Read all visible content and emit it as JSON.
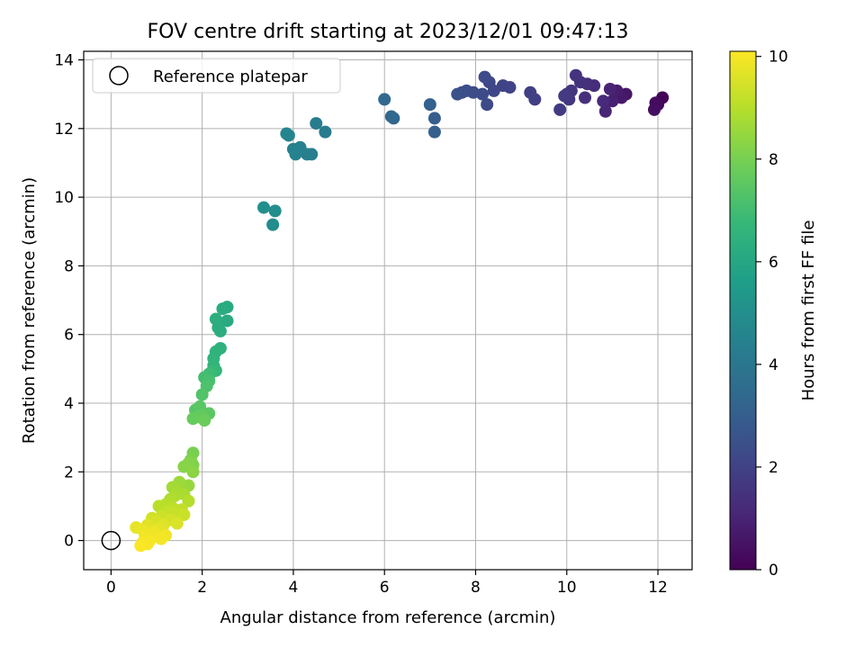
{
  "chart_data": {
    "type": "scatter",
    "title": "FOV centre drift starting at 2023/12/01 09:47:13",
    "xlabel": "Angular distance from reference (arcmin)",
    "ylabel": "Rotation from reference (arcmin)",
    "xlim": [
      -0.6,
      12.75
    ],
    "ylim": [
      -0.85,
      14.25
    ],
    "xticks": [
      0,
      2,
      4,
      6,
      8,
      10,
      12
    ],
    "yticks": [
      0,
      2,
      4,
      6,
      8,
      10,
      12,
      14
    ],
    "grid": true,
    "legend": {
      "placement": "top-left",
      "entries": [
        "Reference platepar"
      ]
    },
    "reference_point": {
      "x": 0,
      "y": 0
    },
    "colorbar": {
      "label": "Hours from first FF file",
      "range": [
        0,
        10.1
      ],
      "ticks": [
        0,
        2,
        4,
        6,
        8,
        10
      ],
      "colormap": "viridis"
    },
    "points": [
      {
        "x": 12.1,
        "y": 12.9,
        "c": 0.1
      },
      {
        "x": 12.0,
        "y": 12.7,
        "c": 0.2
      },
      {
        "x": 11.95,
        "y": 12.75,
        "c": 0.3
      },
      {
        "x": 11.92,
        "y": 12.55,
        "c": 0.4
      },
      {
        "x": 11.3,
        "y": 13.0,
        "c": 0.6
      },
      {
        "x": 11.2,
        "y": 12.9,
        "c": 0.7
      },
      {
        "x": 11.1,
        "y": 13.1,
        "c": 0.8
      },
      {
        "x": 11.0,
        "y": 12.8,
        "c": 0.9
      },
      {
        "x": 10.95,
        "y": 13.15,
        "c": 1.0
      },
      {
        "x": 10.85,
        "y": 12.5,
        "c": 1.1
      },
      {
        "x": 10.8,
        "y": 12.8,
        "c": 1.2
      },
      {
        "x": 10.6,
        "y": 13.25,
        "c": 1.3
      },
      {
        "x": 10.45,
        "y": 13.3,
        "c": 1.35
      },
      {
        "x": 10.4,
        "y": 12.9,
        "c": 1.4
      },
      {
        "x": 10.3,
        "y": 13.35,
        "c": 1.45
      },
      {
        "x": 10.2,
        "y": 13.55,
        "c": 1.5
      },
      {
        "x": 10.1,
        "y": 13.1,
        "c": 1.55
      },
      {
        "x": 10.05,
        "y": 12.85,
        "c": 1.6
      },
      {
        "x": 10.0,
        "y": 13.0,
        "c": 1.65
      },
      {
        "x": 9.95,
        "y": 12.95,
        "c": 1.7
      },
      {
        "x": 9.85,
        "y": 12.55,
        "c": 1.75
      },
      {
        "x": 9.3,
        "y": 12.85,
        "c": 1.85
      },
      {
        "x": 9.2,
        "y": 13.05,
        "c": 1.9
      },
      {
        "x": 8.75,
        "y": 13.2,
        "c": 2.0
      },
      {
        "x": 8.6,
        "y": 13.25,
        "c": 2.05
      },
      {
        "x": 8.4,
        "y": 13.1,
        "c": 2.1
      },
      {
        "x": 8.3,
        "y": 13.35,
        "c": 2.15
      },
      {
        "x": 8.25,
        "y": 12.7,
        "c": 2.2
      },
      {
        "x": 8.2,
        "y": 13.5,
        "c": 2.25
      },
      {
        "x": 8.15,
        "y": 13.0,
        "c": 2.3
      },
      {
        "x": 7.95,
        "y": 13.05,
        "c": 2.35
      },
      {
        "x": 7.8,
        "y": 13.1,
        "c": 2.4
      },
      {
        "x": 7.7,
        "y": 13.05,
        "c": 2.45
      },
      {
        "x": 7.6,
        "y": 13.0,
        "c": 2.5
      },
      {
        "x": 7.1,
        "y": 12.3,
        "c": 3.0
      },
      {
        "x": 7.1,
        "y": 11.9,
        "c": 3.05
      },
      {
        "x": 7.0,
        "y": 12.7,
        "c": 3.1
      },
      {
        "x": 6.2,
        "y": 12.3,
        "c": 3.3
      },
      {
        "x": 6.15,
        "y": 12.35,
        "c": 3.35
      },
      {
        "x": 6.0,
        "y": 12.85,
        "c": 3.4
      },
      {
        "x": 4.7,
        "y": 11.9,
        "c": 4.2
      },
      {
        "x": 4.5,
        "y": 12.15,
        "c": 4.25
      },
      {
        "x": 4.4,
        "y": 11.25,
        "c": 4.3
      },
      {
        "x": 4.3,
        "y": 11.25,
        "c": 4.35
      },
      {
        "x": 4.15,
        "y": 11.45,
        "c": 4.4
      },
      {
        "x": 4.05,
        "y": 11.25,
        "c": 4.45
      },
      {
        "x": 4.0,
        "y": 11.4,
        "c": 4.5
      },
      {
        "x": 3.9,
        "y": 11.8,
        "c": 4.55
      },
      {
        "x": 3.85,
        "y": 11.85,
        "c": 4.6
      },
      {
        "x": 3.55,
        "y": 9.2,
        "c": 4.9
      },
      {
        "x": 3.6,
        "y": 9.6,
        "c": 4.95
      },
      {
        "x": 3.35,
        "y": 9.7,
        "c": 5.0
      },
      {
        "x": 2.55,
        "y": 6.8,
        "c": 6.1
      },
      {
        "x": 2.55,
        "y": 6.4,
        "c": 6.15
      },
      {
        "x": 2.45,
        "y": 6.75,
        "c": 6.2
      },
      {
        "x": 2.4,
        "y": 6.1,
        "c": 6.25
      },
      {
        "x": 2.35,
        "y": 6.2,
        "c": 6.3
      },
      {
        "x": 2.3,
        "y": 6.45,
        "c": 6.35
      },
      {
        "x": 2.4,
        "y": 5.6,
        "c": 6.45
      },
      {
        "x": 2.3,
        "y": 5.5,
        "c": 6.5
      },
      {
        "x": 2.25,
        "y": 5.3,
        "c": 6.55
      },
      {
        "x": 2.25,
        "y": 5.1,
        "c": 6.6
      },
      {
        "x": 2.3,
        "y": 4.95,
        "c": 6.7
      },
      {
        "x": 2.2,
        "y": 4.9,
        "c": 6.8
      },
      {
        "x": 2.15,
        "y": 4.85,
        "c": 6.9
      },
      {
        "x": 2.05,
        "y": 4.75,
        "c": 7.0
      },
      {
        "x": 2.15,
        "y": 4.65,
        "c": 7.1
      },
      {
        "x": 2.1,
        "y": 4.5,
        "c": 7.2
      },
      {
        "x": 2.0,
        "y": 4.25,
        "c": 7.3
      },
      {
        "x": 1.85,
        "y": 3.8,
        "c": 7.4
      },
      {
        "x": 1.95,
        "y": 3.9,
        "c": 7.45
      },
      {
        "x": 2.15,
        "y": 3.7,
        "c": 7.5
      },
      {
        "x": 2.0,
        "y": 3.65,
        "c": 7.6
      },
      {
        "x": 1.9,
        "y": 3.6,
        "c": 7.65
      },
      {
        "x": 1.8,
        "y": 3.55,
        "c": 7.7
      },
      {
        "x": 2.05,
        "y": 3.5,
        "c": 7.75
      },
      {
        "x": 1.8,
        "y": 2.55,
        "c": 8.0
      },
      {
        "x": 1.75,
        "y": 2.35,
        "c": 8.1
      },
      {
        "x": 1.8,
        "y": 2.2,
        "c": 8.15
      },
      {
        "x": 1.7,
        "y": 2.25,
        "c": 8.2
      },
      {
        "x": 1.6,
        "y": 2.15,
        "c": 8.25
      },
      {
        "x": 1.8,
        "y": 2.0,
        "c": 8.3
      },
      {
        "x": 1.7,
        "y": 1.6,
        "c": 8.5
      },
      {
        "x": 1.55,
        "y": 1.6,
        "c": 8.55
      },
      {
        "x": 1.5,
        "y": 1.7,
        "c": 8.6
      },
      {
        "x": 1.4,
        "y": 1.5,
        "c": 8.65
      },
      {
        "x": 1.35,
        "y": 1.55,
        "c": 8.7
      },
      {
        "x": 1.45,
        "y": 1.4,
        "c": 8.75
      },
      {
        "x": 1.6,
        "y": 1.35,
        "c": 8.8
      },
      {
        "x": 1.4,
        "y": 1.3,
        "c": 8.85
      },
      {
        "x": 1.3,
        "y": 1.2,
        "c": 8.9
      },
      {
        "x": 1.7,
        "y": 1.15,
        "c": 8.95
      },
      {
        "x": 1.2,
        "y": 1.05,
        "c": 9.0
      },
      {
        "x": 1.05,
        "y": 1.0,
        "c": 9.05
      },
      {
        "x": 1.35,
        "y": 0.95,
        "c": 9.1
      },
      {
        "x": 1.55,
        "y": 0.9,
        "c": 9.15
      },
      {
        "x": 1.25,
        "y": 0.85,
        "c": 9.2
      },
      {
        "x": 1.45,
        "y": 0.8,
        "c": 9.25
      },
      {
        "x": 1.6,
        "y": 0.75,
        "c": 9.3
      },
      {
        "x": 1.1,
        "y": 0.7,
        "c": 9.35
      },
      {
        "x": 0.9,
        "y": 0.65,
        "c": 9.4
      },
      {
        "x": 1.3,
        "y": 0.6,
        "c": 9.45
      },
      {
        "x": 1.0,
        "y": 0.55,
        "c": 9.5
      },
      {
        "x": 1.45,
        "y": 0.5,
        "c": 9.55
      },
      {
        "x": 1.15,
        "y": 0.45,
        "c": 9.6
      },
      {
        "x": 0.8,
        "y": 0.45,
        "c": 9.65
      },
      {
        "x": 1.05,
        "y": 0.35,
        "c": 9.7
      },
      {
        "x": 0.55,
        "y": 0.38,
        "c": 9.75
      },
      {
        "x": 0.7,
        "y": 0.3,
        "c": 9.8
      },
      {
        "x": 0.95,
        "y": 0.25,
        "c": 9.85
      },
      {
        "x": 0.75,
        "y": 0.15,
        "c": 9.9
      },
      {
        "x": 1.2,
        "y": 0.15,
        "c": 9.92
      },
      {
        "x": 1.1,
        "y": 0.05,
        "c": 9.95
      },
      {
        "x": 0.85,
        "y": 0.0,
        "c": 9.97
      },
      {
        "x": 0.7,
        "y": -0.05,
        "c": 9.98
      },
      {
        "x": 0.8,
        "y": -0.1,
        "c": 10.0
      },
      {
        "x": 0.65,
        "y": -0.15,
        "c": 10.05
      }
    ]
  }
}
